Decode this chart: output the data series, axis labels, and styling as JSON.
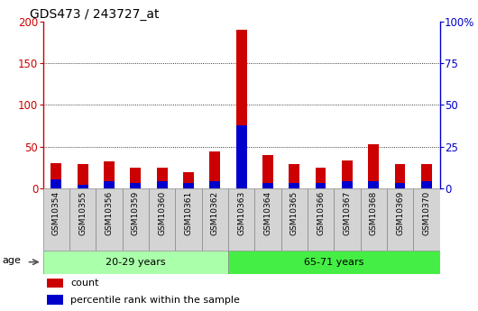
{
  "title": "GDS473 / 243727_at",
  "samples": [
    "GSM10354",
    "GSM10355",
    "GSM10356",
    "GSM10359",
    "GSM10360",
    "GSM10361",
    "GSM10362",
    "GSM10363",
    "GSM10364",
    "GSM10365",
    "GSM10366",
    "GSM10367",
    "GSM10368",
    "GSM10369",
    "GSM10370"
  ],
  "counts": [
    30,
    29,
    32,
    25,
    25,
    19,
    44,
    190,
    40,
    29,
    25,
    33,
    53,
    29,
    29
  ],
  "percentile_ranks": [
    5,
    2,
    4,
    3,
    4,
    3,
    4,
    38,
    3,
    3,
    3,
    4,
    4,
    3,
    4
  ],
  "group1_label": "20-29 years",
  "group2_label": "65-71 years",
  "group1_count": 7,
  "group2_count": 8,
  "left_ylim": [
    0,
    200
  ],
  "right_ylim": [
    0,
    100
  ],
  "left_yticks": [
    0,
    50,
    100,
    150,
    200
  ],
  "right_yticks": [
    0,
    25,
    50,
    75,
    100
  ],
  "left_ytick_labels": [
    "0",
    "50",
    "100",
    "150",
    "200"
  ],
  "right_ytick_labels": [
    "0",
    "25",
    "50",
    "75",
    "100%"
  ],
  "right_y_top_label": "100%",
  "bar_color_count": "#cc0000",
  "bar_color_pct": "#0000cc",
  "group1_bg": "#aaffaa",
  "group2_bg": "#44ee44",
  "age_label": "age",
  "legend_count": "count",
  "legend_pct": "percentile rank within the sample",
  "background_color": "#ffffff",
  "plot_bg": "#ffffff",
  "xtick_bg": "#d4d4d4",
  "bar_width": 0.4
}
